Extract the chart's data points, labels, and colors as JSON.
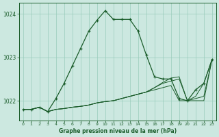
{
  "title": "Graphe pression niveau de la mer (hPa)",
  "bg_color": "#cce8e0",
  "grid_color": "#99ccbb",
  "line_color": "#1a5c2a",
  "xlim": [
    -0.5,
    23.5
  ],
  "ylim": [
    1021.55,
    1024.25
  ],
  "yticks": [
    1022,
    1023,
    1024
  ],
  "xticks": [
    0,
    1,
    2,
    3,
    4,
    5,
    6,
    7,
    8,
    9,
    10,
    11,
    12,
    13,
    14,
    15,
    16,
    17,
    18,
    19,
    20,
    21,
    22,
    23
  ],
  "line1_x": [
    0,
    1,
    2,
    3,
    4,
    5,
    6,
    7,
    8,
    9,
    10,
    11,
    12,
    13,
    14,
    15,
    16,
    17,
    18,
    19,
    20,
    21,
    22,
    23
  ],
  "line1_y": [
    1021.8,
    1021.8,
    1021.85,
    1021.75,
    1022.05,
    1022.4,
    1022.8,
    1023.2,
    1023.6,
    1023.85,
    1024.07,
    1023.87,
    1023.87,
    1023.87,
    1023.6,
    1023.05,
    1022.55,
    1022.5,
    1022.5,
    1022.05,
    1022.0,
    1022.25,
    1022.4,
    1022.95
  ],
  "line2_x": [
    0,
    1,
    2,
    3,
    4,
    5,
    6,
    7,
    8,
    9,
    10,
    11,
    12,
    13,
    14,
    15,
    16,
    17,
    18,
    19,
    20,
    21,
    22,
    23
  ],
  "line2_y": [
    1021.8,
    1021.8,
    1021.85,
    1021.75,
    1021.8,
    1021.82,
    1021.85,
    1021.87,
    1021.9,
    1021.95,
    1021.98,
    1022.0,
    1022.05,
    1022.1,
    1022.15,
    1022.2,
    1022.25,
    1022.3,
    1022.35,
    1022.0,
    1022.0,
    1022.0,
    1022.0,
    1022.95
  ],
  "line3_x": [
    0,
    1,
    2,
    3,
    4,
    5,
    6,
    7,
    8,
    9,
    10,
    11,
    12,
    13,
    14,
    15,
    16,
    17,
    18,
    19,
    20,
    21,
    22,
    23
  ],
  "line3_y": [
    1021.8,
    1021.8,
    1021.85,
    1021.75,
    1021.8,
    1021.82,
    1021.85,
    1021.87,
    1021.9,
    1021.95,
    1021.98,
    1022.0,
    1022.05,
    1022.1,
    1022.15,
    1022.2,
    1022.3,
    1022.4,
    1022.45,
    1022.5,
    1022.0,
    1022.05,
    1022.1,
    1022.95
  ],
  "line4_x": [
    0,
    1,
    2,
    3,
    4,
    5,
    6,
    7,
    8,
    9,
    10,
    11,
    12,
    13,
    14,
    15,
    16,
    17,
    18,
    19,
    20,
    21,
    22,
    23
  ],
  "line4_y": [
    1021.8,
    1021.8,
    1021.85,
    1021.75,
    1021.8,
    1021.82,
    1021.85,
    1021.87,
    1021.9,
    1021.95,
    1021.98,
    1022.0,
    1022.05,
    1022.1,
    1022.15,
    1022.2,
    1022.3,
    1022.42,
    1022.52,
    1022.55,
    1022.0,
    1022.1,
    1022.4,
    1022.95
  ]
}
